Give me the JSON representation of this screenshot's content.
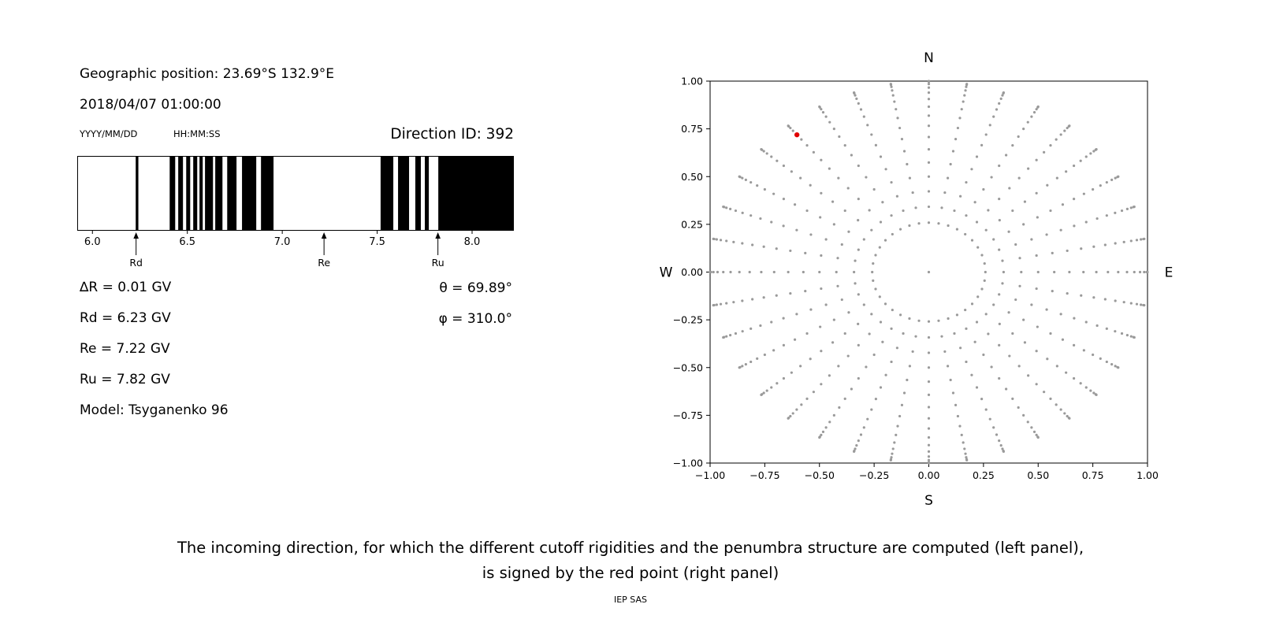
{
  "left_panel": {
    "geo_position": "Geographic position: 23.69°S 132.9°E",
    "datetime": "2018/04/07 01:00:00",
    "date_format_label": "YYYY/MM/DD",
    "time_format_label": "HH:MM:SS",
    "direction_id_label": "Direction ID: 392",
    "delta_r": "∆R = 0.01 GV",
    "rd": "Rd = 6.23 GV",
    "re": "Re = 7.22 GV",
    "ru": "Ru = 7.82 GV",
    "model": "Model: Tsyganenko 96",
    "theta": "θ = 69.89°",
    "phi": "φ = 310.0°"
  },
  "caption_line1": "The incoming direction, for which the different cutoff rigidities and the penumbra structure are computed (left panel),",
  "caption_line2": "is signed by the red point (right panel)",
  "footer": "IEP SAS",
  "chart_data": [
    {
      "name": "penumbra-structure",
      "type": "bar",
      "subtype": "penumbra-barcode",
      "title": "",
      "x_range_gv": [
        5.92,
        8.22
      ],
      "x_ticks": [
        6.0,
        6.5,
        7.0,
        7.5,
        8.0
      ],
      "x_tick_labels": [
        "6.0",
        "6.5",
        "7.0",
        "7.5",
        "8.0"
      ],
      "bar_color": "#000000",
      "black_intervals_gv": [
        [
          6.228,
          6.242
        ],
        [
          6.407,
          6.436
        ],
        [
          6.452,
          6.477
        ],
        [
          6.494,
          6.515
        ],
        [
          6.531,
          6.552
        ],
        [
          6.564,
          6.581
        ],
        [
          6.593,
          6.635
        ],
        [
          6.647,
          6.685
        ],
        [
          6.71,
          6.759
        ],
        [
          6.788,
          6.863
        ],
        [
          6.888,
          6.954
        ],
        [
          7.518,
          7.585
        ],
        [
          7.61,
          7.668
        ],
        [
          7.701,
          7.73
        ],
        [
          7.751,
          7.772
        ],
        [
          7.822,
          8.22
        ]
      ],
      "markers": [
        {
          "label": "Rd",
          "gv": 6.23
        },
        {
          "label": "Re",
          "gv": 7.22
        },
        {
          "label": "Ru",
          "gv": 7.82
        }
      ]
    },
    {
      "name": "incoming-directions",
      "type": "scatter",
      "title": "",
      "xlim": [
        -1,
        1
      ],
      "ylim": [
        -1,
        1
      ],
      "grid": false,
      "tick_values": [
        -1.0,
        -0.75,
        -0.5,
        -0.25,
        0.0,
        0.25,
        0.5,
        0.75,
        1.0
      ],
      "tick_labels": [
        "−1.00",
        "−0.75",
        "−0.50",
        "−0.25",
        "0.00",
        "0.25",
        "0.50",
        "0.75",
        "1.00"
      ],
      "compass": {
        "top": "N",
        "bottom": "S",
        "left": "W",
        "right": "E"
      },
      "gray_points": {
        "color": "#9a9a9a",
        "azimuth_deg_start": 0,
        "azimuth_deg_step": 10,
        "azimuth_count": 36,
        "zenith_deg_min": 15,
        "zenith_deg_max": 90,
        "zenith_deg_step": 5,
        "radius_rule": "r = sin(zenith)",
        "include_center_point": true
      },
      "red_point": {
        "x": -0.603,
        "y": 0.719,
        "theta_deg": 69.89,
        "phi_deg": 310.0,
        "color": "#e00000"
      }
    }
  ]
}
